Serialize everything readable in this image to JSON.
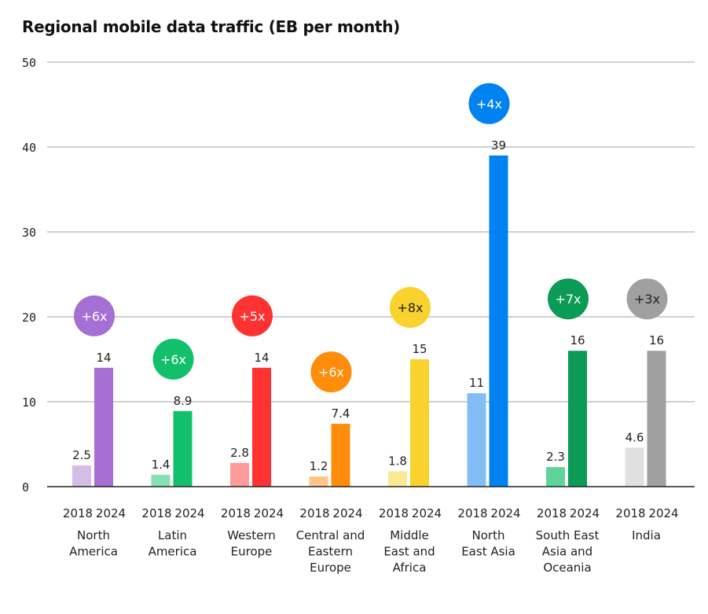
{
  "chart_data": {
    "type": "bar",
    "title": "Regional mobile data traffic (EB per month)",
    "xlabel": "",
    "ylabel": "",
    "ylim": [
      0,
      50
    ],
    "yticks": [
      0,
      10,
      20,
      30,
      40,
      50
    ],
    "grid": true,
    "series_names": [
      "2018",
      "2024"
    ],
    "categories": [
      {
        "name": "North America",
        "lines": [
          "North",
          "America"
        ],
        "v2018": 2.5,
        "v2024": 14,
        "l2018": "2.5",
        "l2024": "14",
        "growth": "+6x",
        "color2018": "#d5bde8",
        "color2024": "#a66fd4",
        "badge_color": "#a66fd4",
        "badge_text_color": "#ffffff"
      },
      {
        "name": "Latin America",
        "lines": [
          "Latin",
          "America"
        ],
        "v2018": 1.4,
        "v2024": 8.9,
        "l2018": "1.4",
        "l2024": "8.9",
        "growth": "+6x",
        "color2018": "#86e1b5",
        "color2024": "#12c06b",
        "badge_color": "#12c06b",
        "badge_text_color": "#ffffff"
      },
      {
        "name": "Western Europe",
        "lines": [
          "Western",
          "Europe"
        ],
        "v2018": 2.8,
        "v2024": 14,
        "l2018": "2.8",
        "l2024": "14",
        "growth": "+5x",
        "color2018": "#ff9b9b",
        "color2024": "#ff3232",
        "badge_color": "#ff3232",
        "badge_text_color": "#ffffff"
      },
      {
        "name": "Central and Eastern Europe",
        "lines": [
          "Central and",
          "Eastern",
          "Europe"
        ],
        "v2018": 1.2,
        "v2024": 7.4,
        "l2018": "1.2",
        "l2024": "7.4",
        "growth": "+6x",
        "color2018": "#ffc487",
        "color2024": "#ff8c0a",
        "badge_color": "#ff8c0a",
        "badge_text_color": "#ffffff"
      },
      {
        "name": "Middle East and Africa",
        "lines": [
          "Middle",
          "East and",
          "Africa"
        ],
        "v2018": 1.8,
        "v2024": 15,
        "l2018": "1.8",
        "l2024": "15",
        "growth": "+8x",
        "color2018": "#fce993",
        "color2024": "#fad22d",
        "badge_color": "#fad22d",
        "badge_text_color": "#222222"
      },
      {
        "name": "North East Asia",
        "lines": [
          "North",
          "East Asia"
        ],
        "v2018": 11,
        "v2024": 39,
        "l2018": "11",
        "l2024": "39",
        "growth": "+4x",
        "color2018": "#82bef5",
        "color2024": "#0082f0",
        "badge_color": "#0082f0",
        "badge_text_color": "#ffffff"
      },
      {
        "name": "South East Asia and Oceania",
        "lines": [
          "South East",
          "Asia and",
          "Oceania"
        ],
        "v2018": 2.3,
        "v2024": 16,
        "l2018": "2.3",
        "l2024": "16",
        "growth": "+7x",
        "color2018": "#5ed39a",
        "color2024": "#0c9a57",
        "badge_color": "#0c9a57",
        "badge_text_color": "#ffffff"
      },
      {
        "name": "India",
        "lines": [
          "India"
        ],
        "v2018": 4.6,
        "v2024": 16,
        "l2018": "4.6",
        "l2024": "16",
        "growth": "+3x",
        "color2018": "#e0e0e0",
        "color2024": "#a0a0a0",
        "badge_color": "#a0a0a0",
        "badge_text_color": "#222222"
      }
    ]
  }
}
